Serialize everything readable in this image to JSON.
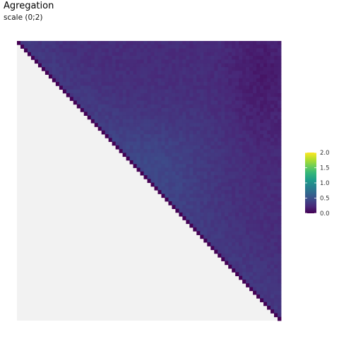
{
  "chart_data": {
    "type": "heatmap",
    "title": "Agregation",
    "subtitle": "scale (0;2)",
    "layout": "upper-triangular matrix",
    "value_range": [
      0,
      2
    ],
    "colormap": "viridis",
    "colormap_stops": [
      "#440154",
      "#482878",
      "#3e4989",
      "#31688e",
      "#26828e",
      "#1f9e89",
      "#35b779",
      "#6ece58",
      "#b5de2b",
      "#fde725"
    ],
    "legend": {
      "position": "right",
      "ticks": [
        {
          "value": 2.0,
          "label": "2.0"
        },
        {
          "value": 1.5,
          "label": "1.5"
        },
        {
          "value": 1.0,
          "label": "1.0"
        },
        {
          "value": 0.5,
          "label": "0.5"
        },
        {
          "value": 0.0,
          "label": "0.0"
        }
      ]
    },
    "empty_region_color": "#f2f2f2",
    "approximate_values": {
      "typical": 0.25,
      "min": 0.1,
      "max": 0.55
    }
  }
}
